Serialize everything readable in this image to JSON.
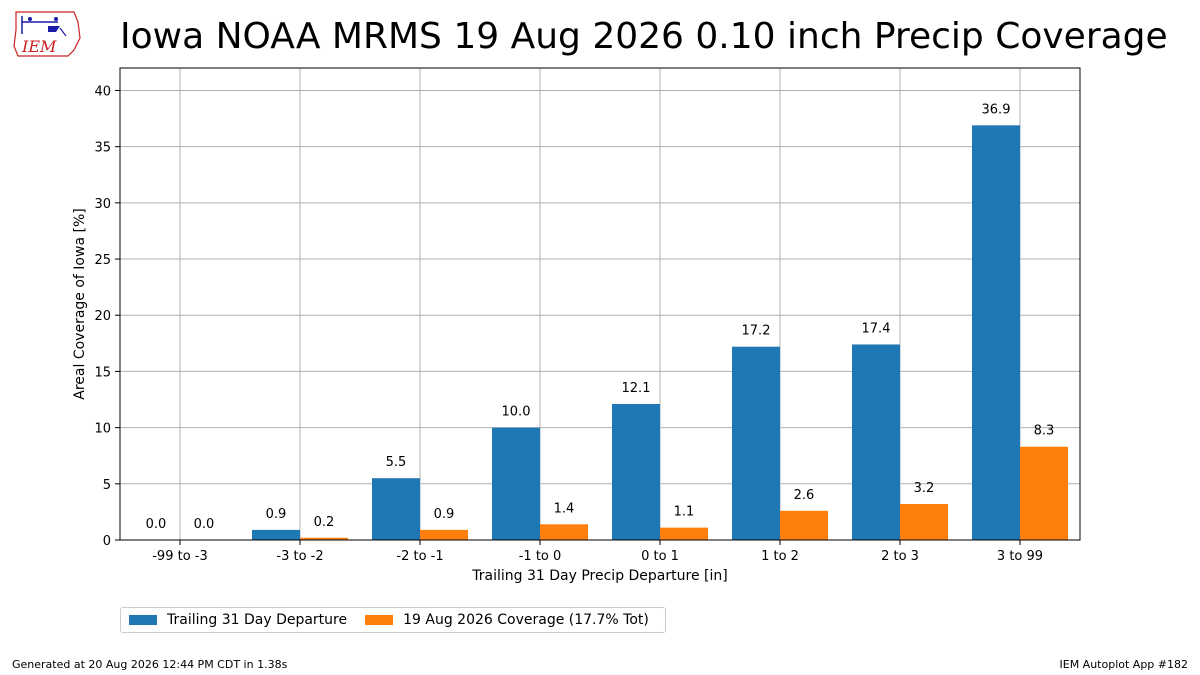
{
  "logo": {
    "text": "IEM"
  },
  "footer": {
    "generated": "Generated at 20 Aug 2026 12:44 PM CDT in 1.38s",
    "app": "IEM Autoplot App #182"
  },
  "chart_data": {
    "type": "bar",
    "title": "Iowa NOAA MRMS 19 Aug 2026 0.10 inch Precip Coverage",
    "xlabel": "Trailing 31 Day Precip Departure [in]",
    "ylabel": "Areal Coverage of Iowa [%]",
    "ylim": [
      0,
      42
    ],
    "yticks": [
      0,
      5,
      10,
      15,
      20,
      25,
      30,
      35,
      40
    ],
    "grid": true,
    "legend_position": "bottom-left",
    "categories": [
      "-99 to -3",
      "-3 to -2",
      "-2 to -1",
      "-1 to 0",
      "0 to 1",
      "1 to 2",
      "2 to 3",
      "3 to 99"
    ],
    "series": [
      {
        "name": "Trailing 31 Day Departure",
        "color": "#1f77b4",
        "values": [
          0.0,
          0.9,
          5.5,
          10.0,
          12.1,
          17.2,
          17.4,
          36.9
        ],
        "labels": [
          "0.0",
          "0.9",
          "5.5",
          "10.0",
          "12.1",
          "17.2",
          "17.4",
          "36.9"
        ]
      },
      {
        "name": "19 Aug 2026 Coverage (17.7% Tot)",
        "color": "#ff7f0e",
        "values": [
          0.0,
          0.2,
          0.9,
          1.4,
          1.1,
          2.6,
          3.2,
          8.3
        ],
        "labels": [
          "0.0",
          "0.2",
          "0.9",
          "1.4",
          "1.1",
          "2.6",
          "3.2",
          "8.3"
        ]
      }
    ]
  }
}
